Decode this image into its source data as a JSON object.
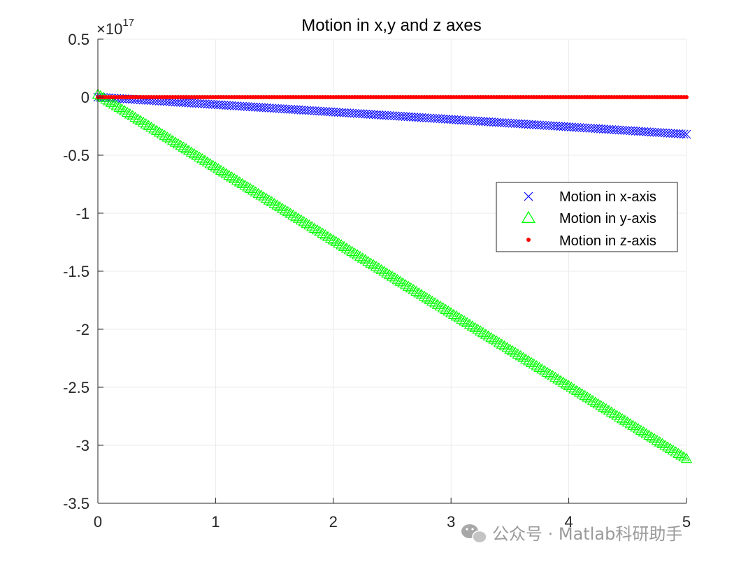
{
  "chart_data": {
    "type": "scatter",
    "title": "Motion in x,y and z axes",
    "xlabel": "",
    "ylabel": "",
    "xlim": [
      0,
      5
    ],
    "ylim": [
      -3.5e+17,
      5e+16
    ],
    "y_exponent_label": {
      "base": "×10",
      "power": "17"
    },
    "x_ticks": [
      0,
      1,
      2,
      3,
      4,
      5
    ],
    "x_tick_labels": [
      "0",
      "1",
      "2",
      "3",
      "4",
      "5"
    ],
    "y_ticks": [
      5e+16,
      0,
      -5e+16,
      -1e+17,
      -1.5e+17,
      -2e+17,
      -2.5e+17,
      -3e+17,
      -3.5e+17
    ],
    "y_tick_labels": [
      "0.5",
      "0",
      "-0.5",
      "-1",
      "-1.5",
      "-2",
      "-2.5",
      "-3",
      "-3.5"
    ],
    "grid": true,
    "legend_position": "right",
    "series": [
      {
        "name": "Motion in x-axis",
        "marker": "x",
        "color": "#0000ff",
        "x_start": 0,
        "x_end": 5,
        "y_start": 0,
        "y_end": -3.2e+16
      },
      {
        "name": "Motion in y-axis",
        "marker": "triangle",
        "color": "#00ff00",
        "x_start": 0,
        "x_end": 5,
        "y_start": 2000000000000000.0,
        "y_end": -3.12e+17
      },
      {
        "name": "Motion in z-axis",
        "marker": "dot",
        "color": "#ff0000",
        "x_start": 0,
        "x_end": 5,
        "y_start": 0,
        "y_end": 0
      }
    ]
  },
  "watermark": {
    "text": "公众号 · Matlab科研助手",
    "icon": "wechat-icon"
  }
}
